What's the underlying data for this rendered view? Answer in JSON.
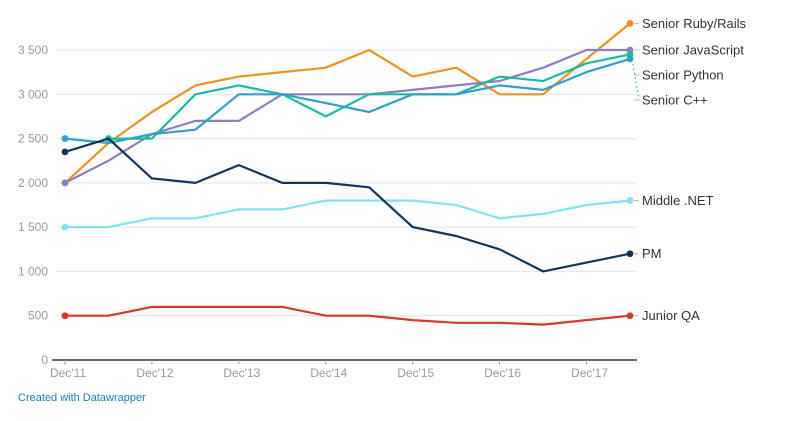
{
  "attribution": {
    "label": "Created with Datawrapper",
    "color": "#1d81b5"
  },
  "chart_data": {
    "type": "line",
    "title": "",
    "xlabel": "",
    "ylabel": "",
    "ylim": [
      0,
      3500
    ],
    "grid": "horizontal",
    "legend_position": "right-edge-direct-labels",
    "x_categories": [
      "Dec'11",
      "Jun'12",
      "Dec'12",
      "Jun'13",
      "Dec'13",
      "Jun'14",
      "Dec'14",
      "Jun'15",
      "Dec'15",
      "Jun'16",
      "Dec'16",
      "Jun'17",
      "Dec'17",
      "Jun'18"
    ],
    "x_axis_tick_labels": [
      "Dec'11",
      "Dec'12",
      "Dec'13",
      "Dec'14",
      "Dec'15",
      "Dec'16",
      "Dec'17"
    ],
    "y_ticks": [
      0,
      500,
      1000,
      1500,
      2000,
      2500,
      3000,
      3500
    ],
    "y_tick_labels": [
      "0",
      "500",
      "1 000",
      "1 500",
      "2 000",
      "2 500",
      "3 000",
      "3 500"
    ],
    "series": [
      {
        "name": "Senior Ruby/Rails",
        "color": "#f0911e",
        "values": [
          2000,
          2450,
          2800,
          3100,
          3200,
          3250,
          3300,
          3500,
          3200,
          3300,
          3000,
          3000,
          3400,
          3800
        ]
      },
      {
        "name": "Senior JavaScript",
        "color": "#8d7ec5",
        "values": [
          2000,
          2250,
          2550,
          2700,
          2700,
          3000,
          3000,
          3000,
          3050,
          3100,
          3150,
          3300,
          3500,
          3500
        ]
      },
      {
        "name": "Senior Python",
        "color": "#14be9b",
        "values": [
          null,
          2500,
          2500,
          3000,
          3100,
          3000,
          2750,
          3000,
          3000,
          3000,
          3200,
          3150,
          3350,
          3450
        ]
      },
      {
        "name": "Senior C++",
        "color": "#2ea0c9",
        "values": [
          2500,
          2450,
          2550,
          2600,
          3000,
          3000,
          2900,
          2800,
          3000,
          3000,
          3100,
          3050,
          3250,
          3400
        ]
      },
      {
        "name": "Middle .NET",
        "color": "#7fe3f2",
        "values": [
          1500,
          1500,
          1600,
          1600,
          1700,
          1700,
          1800,
          1800,
          1800,
          1750,
          1600,
          1650,
          1750,
          1800
        ]
      },
      {
        "name": "PM",
        "color": "#14355b",
        "values": [
          2350,
          2500,
          2050,
          2000,
          2200,
          2000,
          2000,
          1950,
          1500,
          1400,
          1250,
          1000,
          1100,
          1200
        ]
      },
      {
        "name": "Junior QA",
        "color": "#d53a2f",
        "values": [
          500,
          500,
          600,
          600,
          600,
          600,
          500,
          500,
          450,
          420,
          420,
          400,
          450,
          500
        ]
      }
    ]
  }
}
